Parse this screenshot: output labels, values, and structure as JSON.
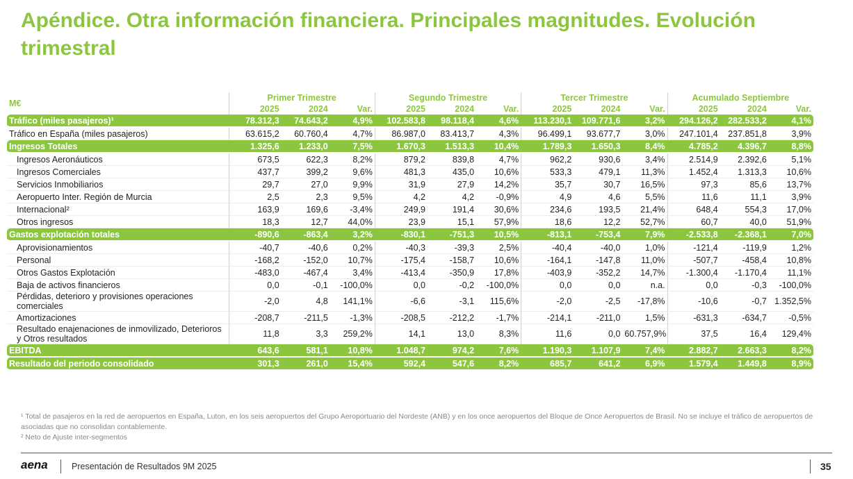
{
  "header": {
    "title": "Apéndice. Otra información financiera. Principales magnitudes. Evolución trimestral"
  },
  "table": {
    "unit": "M€",
    "groups": [
      {
        "name": "Primer Trimestre",
        "columns": [
          "2025",
          "2024",
          "Var."
        ]
      },
      {
        "name": "Segundo Trimestre",
        "columns": [
          "2025",
          "2024",
          "Var."
        ]
      },
      {
        "name": "Tercer Trimestre",
        "columns": [
          "2025",
          "2024",
          "Var."
        ]
      },
      {
        "name": "Acumulado Septiembre",
        "columns": [
          "2025",
          "2024",
          "Var."
        ]
      }
    ],
    "rows": [
      {
        "label": "Tráfico (miles pasajeros)¹",
        "highlight": true,
        "indent": false,
        "cells": [
          "78.312,3",
          "74.643,2",
          "4,9%",
          "102.583,8",
          "98.118,4",
          "4,6%",
          "113.230,1",
          "109.771,6",
          "3,2%",
          "294.126,2",
          "282.533,2",
          "4,1%"
        ]
      },
      {
        "label": "Tráfico en España (miles pasajeros)",
        "highlight": false,
        "indent": false,
        "cells": [
          "63.615,2",
          "60.760,4",
          "4,7%",
          "86.987,0",
          "83.413,7",
          "4,3%",
          "96.499,1",
          "93.677,7",
          "3,0%",
          "247.101,4",
          "237.851,8",
          "3,9%"
        ]
      },
      {
        "label": "Ingresos Totales",
        "highlight": true,
        "indent": false,
        "cells": [
          "1.325,6",
          "1.233,0",
          "7,5%",
          "1.670,3",
          "1.513,3",
          "10,4%",
          "1.789,3",
          "1.650,3",
          "8,4%",
          "4.785,2",
          "4.396,7",
          "8,8%"
        ]
      },
      {
        "label": "Ingresos Aeronáuticos",
        "highlight": false,
        "indent": true,
        "cells": [
          "673,5",
          "622,3",
          "8,2%",
          "879,2",
          "839,8",
          "4,7%",
          "962,2",
          "930,6",
          "3,4%",
          "2.514,9",
          "2.392,6",
          "5,1%"
        ]
      },
      {
        "label": "Ingresos Comerciales",
        "highlight": false,
        "indent": true,
        "cells": [
          "437,7",
          "399,2",
          "9,6%",
          "481,3",
          "435,0",
          "10,6%",
          "533,3",
          "479,1",
          "11,3%",
          "1.452,4",
          "1.313,3",
          "10,6%"
        ]
      },
      {
        "label": "Servicios Inmobiliarios",
        "highlight": false,
        "indent": true,
        "cells": [
          "29,7",
          "27,0",
          "9,9%",
          "31,9",
          "27,9",
          "14,2%",
          "35,7",
          "30,7",
          "16,5%",
          "97,3",
          "85,6",
          "13,7%"
        ]
      },
      {
        "label": "Aeropuerto Inter. Región de Murcia",
        "highlight": false,
        "indent": true,
        "cells": [
          "2,5",
          "2,3",
          "9,5%",
          "4,2",
          "4,2",
          "-0,9%",
          "4,9",
          "4,6",
          "5,5%",
          "11,6",
          "11,1",
          "3,9%"
        ]
      },
      {
        "label": "Internacional²",
        "highlight": false,
        "indent": true,
        "cells": [
          "163,9",
          "169,6",
          "-3,4%",
          "249,9",
          "191,4",
          "30,6%",
          "234,6",
          "193,5",
          "21,4%",
          "648,4",
          "554,3",
          "17,0%"
        ]
      },
      {
        "label": "Otros ingresos",
        "highlight": false,
        "indent": true,
        "cells": [
          "18,3",
          "12,7",
          "44,0%",
          "23,9",
          "15,1",
          "57,9%",
          "18,6",
          "12,2",
          "52,7%",
          "60,7",
          "40,0",
          "51,9%"
        ]
      },
      {
        "label": "Gastos explotación totales",
        "highlight": true,
        "indent": false,
        "cells": [
          "-890,6",
          "-863,4",
          "3,2%",
          "-830,1",
          "-751,3",
          "10,5%",
          "-813,1",
          "-753,4",
          "7,9%",
          "-2.533,8",
          "-2.368,1",
          "7,0%"
        ]
      },
      {
        "label": "Aprovisionamientos",
        "highlight": false,
        "indent": true,
        "cells": [
          "-40,7",
          "-40,6",
          "0,2%",
          "-40,3",
          "-39,3",
          "2,5%",
          "-40,4",
          "-40,0",
          "1,0%",
          "-121,4",
          "-119,9",
          "1,2%"
        ]
      },
      {
        "label": "Personal",
        "highlight": false,
        "indent": true,
        "cells": [
          "-168,2",
          "-152,0",
          "10,7%",
          "-175,4",
          "-158,7",
          "10,6%",
          "-164,1",
          "-147,8",
          "11,0%",
          "-507,7",
          "-458,4",
          "10,8%"
        ]
      },
      {
        "label": "Otros Gastos Explotación",
        "highlight": false,
        "indent": true,
        "cells": [
          "-483,0",
          "-467,4",
          "3,4%",
          "-413,4",
          "-350,9",
          "17,8%",
          "-403,9",
          "-352,2",
          "14,7%",
          "-1.300,4",
          "-1.170,4",
          "11,1%"
        ]
      },
      {
        "label": "Baja de activos financieros",
        "highlight": false,
        "indent": true,
        "cells": [
          "0,0",
          "-0,1",
          "-100,0%",
          "0,0",
          "-0,2",
          "-100,0%",
          "0,0",
          "0,0",
          "n.a.",
          "0,0",
          "-0,3",
          "-100,0%"
        ]
      },
      {
        "label": "Pérdidas, deterioro y provisiones operaciones comerciales",
        "highlight": false,
        "indent": true,
        "cells": [
          "-2,0",
          "4,8",
          "141,1%",
          "-6,6",
          "-3,1",
          "115,6%",
          "-2,0",
          "-2,5",
          "-17,8%",
          "-10,6",
          "-0,7",
          "1.352,5%"
        ]
      },
      {
        "label": "Amortizaciones",
        "highlight": false,
        "indent": true,
        "cells": [
          "-208,7",
          "-211,5",
          "-1,3%",
          "-208,5",
          "-212,2",
          "-1,7%",
          "-214,1",
          "-211,0",
          "1,5%",
          "-631,3",
          "-634,7",
          "-0,5%"
        ]
      },
      {
        "label": "Resultado enajenaciones de inmovilizado, Deterioros y Otros resultados",
        "highlight": false,
        "indent": true,
        "cells": [
          "11,8",
          "3,3",
          "259,2%",
          "14,1",
          "13,0",
          "8,3%",
          "11,6",
          "0,0",
          "60.757,9%",
          "37,5",
          "16,4",
          "129,4%"
        ]
      },
      {
        "label": "EBITDA",
        "highlight": true,
        "indent": false,
        "cells": [
          "643,6",
          "581,1",
          "10,8%",
          "1.048,7",
          "974,2",
          "7,6%",
          "1.190,3",
          "1.107,9",
          "7,4%",
          "2.882,7",
          "2.663,3",
          "8,2%"
        ]
      },
      {
        "label": "Resultado del periodo consolidado",
        "highlight": true,
        "indent": false,
        "cells": [
          "301,3",
          "261,0",
          "15,4%",
          "592,4",
          "547,6",
          "8,2%",
          "685,7",
          "641,2",
          "6,9%",
          "1.579,4",
          "1.449,8",
          "8,9%"
        ]
      }
    ]
  },
  "footnotes": [
    "¹ Total de pasajeros en la red de aeropuertos en España, Luton, en los seis aeropuertos del Grupo Aeroportuario del Nordeste (ANB) y en los once aeropuertos del Bloque de Once Aeropuertos de Brasil. No se incluye el tráfico de aeropuertos de asociadas que no consolidan contablemente.",
    "² Neto de Ajuste inter-segmentos"
  ],
  "footer": {
    "logo": "aena",
    "text": "Presentación de Resultados 9M 2025",
    "page": "35"
  }
}
